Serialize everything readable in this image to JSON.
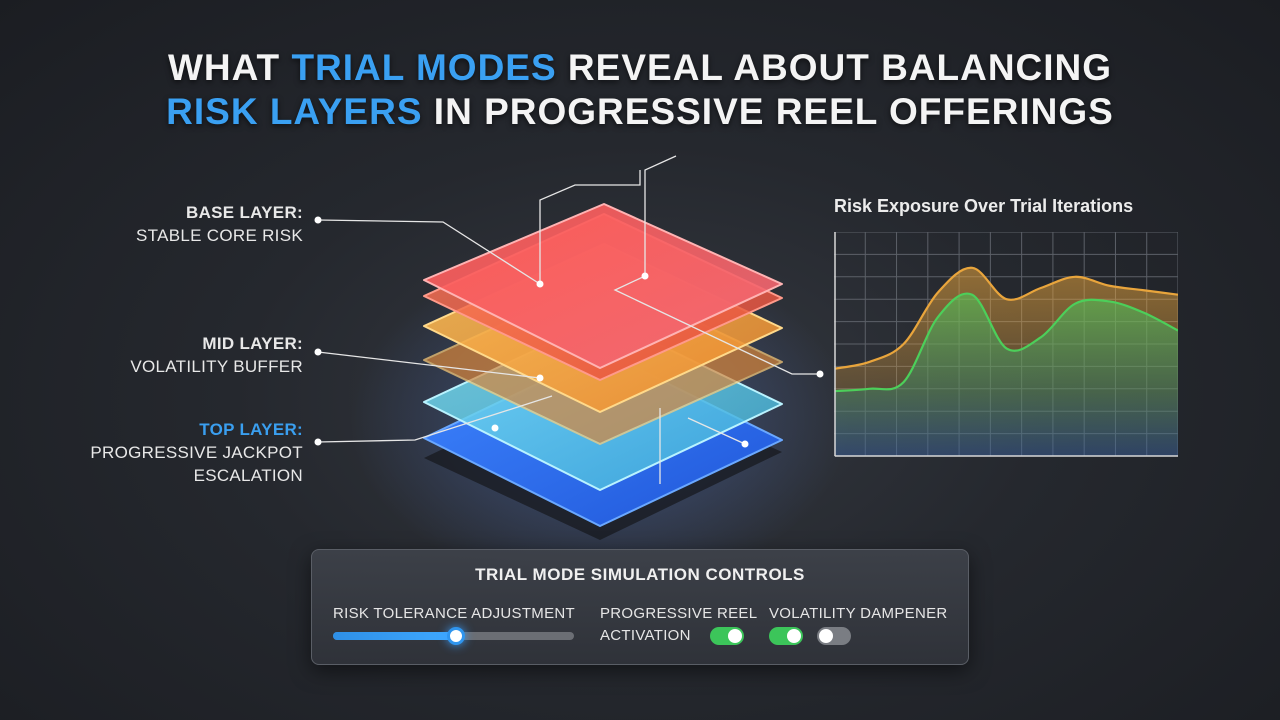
{
  "headline": {
    "line1_pre": "WHAT ",
    "line1_hl": "TRIAL MODES",
    "line1_post": " REVEAL ABOUT BALANCING",
    "line2_hl": "RISK LAYERS",
    "line2_post": " IN PROGRESSIVE REEL OFFERINGS",
    "accent_color": "#3aa0f2"
  },
  "layers": {
    "base": {
      "title": "BASE LAYER:",
      "desc": "STABLE CORE RISK"
    },
    "mid": {
      "title": "MID LAYER:",
      "desc": "VOLATILITY BUFFER"
    },
    "top": {
      "title": "TOP LAYER:",
      "desc_line1": "PROGRESSIVE JACKPOT",
      "desc_line2": "ESCALATION"
    },
    "colors": {
      "red": "#f0504a",
      "orange": "#f5a53a",
      "cyan": "#4fc9e6",
      "blue": "#2f6fe6"
    }
  },
  "chart_data": {
    "type": "area",
    "title": "Risk Exposure Over Trial Iterations",
    "xlabel": "",
    "ylabel": "",
    "x": [
      0,
      1,
      2,
      3,
      4,
      5,
      6,
      7,
      8,
      9,
      10
    ],
    "ylim": [
      0,
      10
    ],
    "grid": true,
    "series": [
      {
        "values": [
          3.9,
          4.2,
          5.0,
          7.3,
          8.4,
          7.0,
          7.5,
          8.0,
          7.6,
          7.4,
          7.2
        ],
        "color": "#e9a53c"
      },
      {
        "values": [
          2.9,
          3.0,
          3.3,
          6.2,
          7.2,
          4.8,
          5.3,
          6.8,
          6.9,
          6.4,
          5.6
        ],
        "color": "#4ccf5a"
      }
    ]
  },
  "controls": {
    "title": "TRIAL MODE SIMULATION CONTROLS",
    "risk_tolerance": {
      "label": "RISK TOLERANCE ADJUSTMENT",
      "value": 0.51
    },
    "progressive_reel": {
      "label_line1": "PROGRESSIVE REEL",
      "label_line2": "ACTIVATION",
      "enabled": true
    },
    "volatility_dampener": {
      "label": "VOLATILITY DAMPENER",
      "toggle1_on": true,
      "toggle2_on": false
    }
  }
}
